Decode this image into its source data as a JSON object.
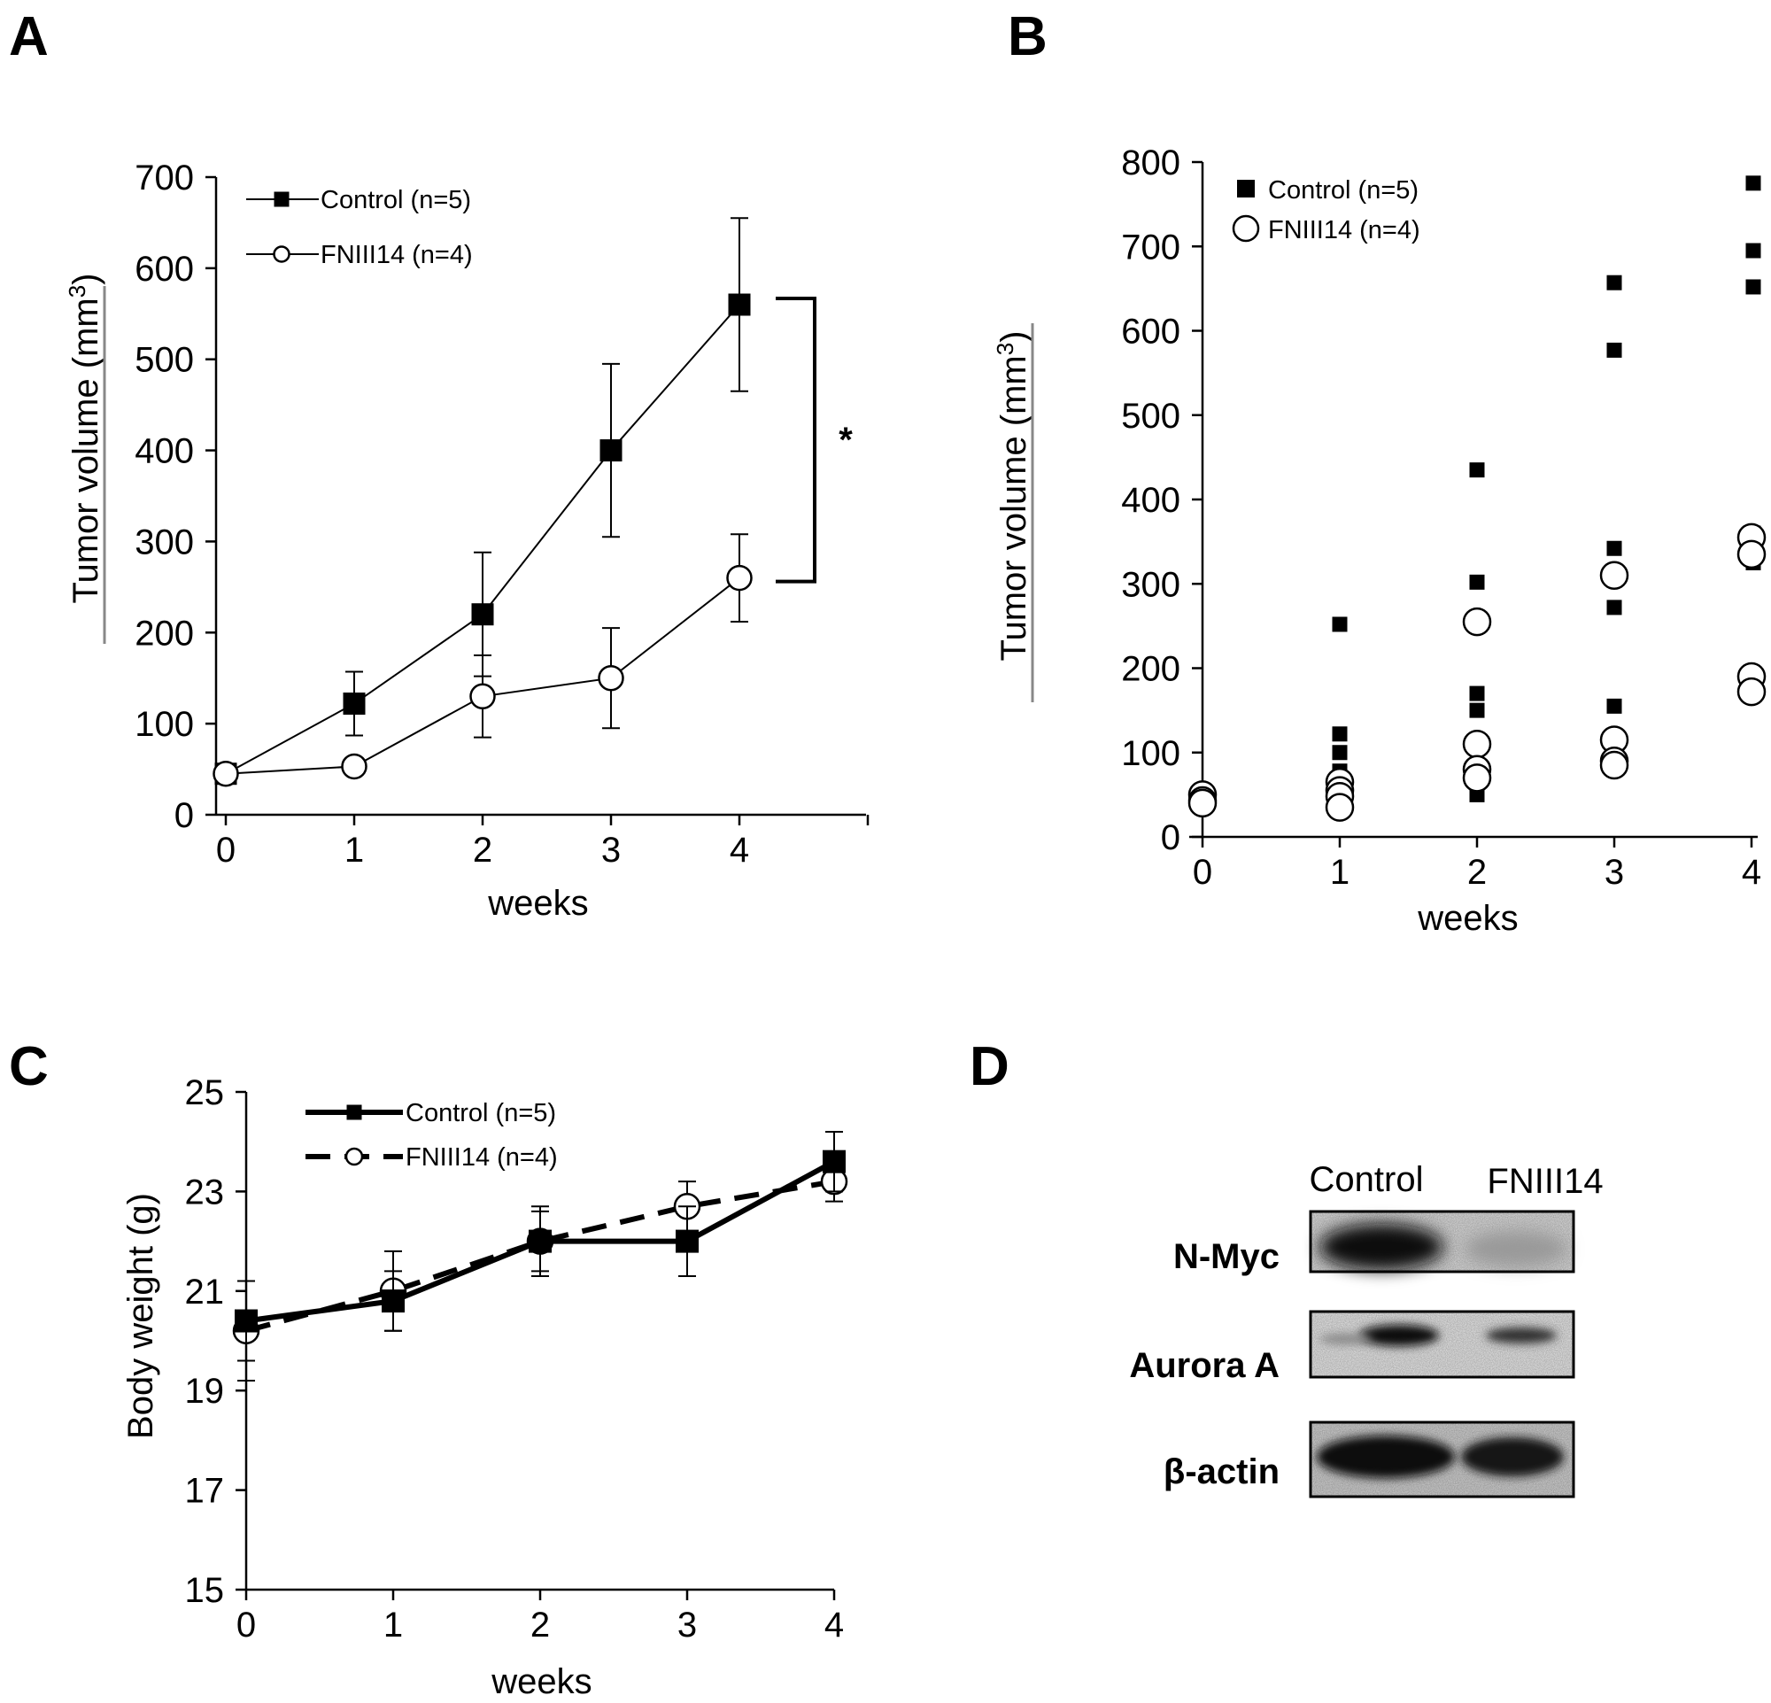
{
  "panels": {
    "A": "A",
    "B": "B",
    "C": "C",
    "D": "D"
  },
  "chart_data": [
    {
      "id": "A",
      "type": "line",
      "title": "",
      "xlabel": "weeks",
      "ylabel_main": "Tumor volume (mm",
      "ylabel_sup": "3",
      "ylabel_close": ")",
      "xlim": [
        0,
        5
      ],
      "ylim": [
        0,
        700
      ],
      "xticks": [
        0,
        1,
        2,
        3,
        4
      ],
      "yticks": [
        0,
        100,
        200,
        300,
        400,
        500,
        600,
        700
      ],
      "legend_position": "top-left",
      "significance": "*",
      "series": [
        {
          "name": "Control (n=5)",
          "marker": "filled-square",
          "x": [
            0,
            1,
            2,
            3,
            4
          ],
          "y": [
            45,
            122,
            220,
            400,
            560
          ],
          "err": [
            5,
            35,
            68,
            95,
            95
          ]
        },
        {
          "name": "FNIII14 (n=4)",
          "marker": "open-circle",
          "x": [
            0,
            1,
            2,
            3,
            4
          ],
          "y": [
            45,
            53,
            130,
            150,
            260
          ],
          "err": [
            5,
            8,
            45,
            55,
            48
          ]
        }
      ]
    },
    {
      "id": "B",
      "type": "scatter",
      "title": "",
      "xlabel": "weeks",
      "ylabel_main": "Tumor volume (mm",
      "ylabel_sup": "3",
      "ylabel_close": ")",
      "xlim": [
        0,
        4
      ],
      "ylim": [
        0,
        800
      ],
      "xticks": [
        0,
        1,
        2,
        3,
        4
      ],
      "yticks": [
        0,
        100,
        200,
        300,
        400,
        500,
        600,
        700,
        800
      ],
      "legend_position": "top-left",
      "series": [
        {
          "name": "Control (n=5)",
          "marker": "filled-square",
          "points": [
            [
              0,
              50
            ],
            [
              0,
              45
            ],
            [
              0,
              42
            ],
            [
              0,
              40
            ],
            [
              0,
              38
            ],
            [
              1,
              252
            ],
            [
              1,
              122
            ],
            [
              1,
              100
            ],
            [
              1,
              78
            ],
            [
              1,
              70
            ],
            [
              2,
              435
            ],
            [
              2,
              302
            ],
            [
              2,
              170
            ],
            [
              2,
              150
            ],
            [
              2,
              50
            ],
            [
              3,
              657
            ],
            [
              3,
              577
            ],
            [
              3,
              342
            ],
            [
              3,
              272
            ],
            [
              3,
              155
            ],
            [
              4,
              775
            ],
            [
              4,
              695
            ],
            [
              4,
              652
            ],
            [
              4,
              360
            ],
            [
              4,
              325
            ]
          ]
        },
        {
          "name": "FNIII14 (n=4)",
          "marker": "open-circle",
          "points": [
            [
              0,
              50
            ],
            [
              0,
              43
            ],
            [
              0,
              40
            ],
            [
              1,
              65
            ],
            [
              1,
              55
            ],
            [
              1,
              48
            ],
            [
              1,
              35
            ],
            [
              2,
              255
            ],
            [
              2,
              110
            ],
            [
              2,
              80
            ],
            [
              2,
              70
            ],
            [
              3,
              310
            ],
            [
              3,
              115
            ],
            [
              3,
              90
            ],
            [
              3,
              85
            ],
            [
              4,
              355
            ],
            [
              4,
              335
            ],
            [
              4,
              190
            ],
            [
              4,
              172
            ]
          ]
        }
      ]
    },
    {
      "id": "C",
      "type": "line",
      "title": "",
      "xlabel": "weeks",
      "ylabel": "Body weight (g)",
      "xlim": [
        0,
        4
      ],
      "ylim": [
        15,
        25
      ],
      "xticks": [
        0,
        1,
        2,
        3,
        4
      ],
      "yticks": [
        15,
        17,
        19,
        21,
        23,
        25
      ],
      "legend_position": "top-left",
      "series": [
        {
          "name": "Control (n=5)",
          "marker": "filled-square",
          "line": "solid",
          "x": [
            0,
            1,
            2,
            3,
            4
          ],
          "y": [
            20.4,
            20.8,
            22.0,
            22.0,
            23.6
          ],
          "err": [
            0.8,
            0.6,
            0.7,
            0.7,
            0.6
          ]
        },
        {
          "name": "FNIII14 (n=4)",
          "marker": "open-circle",
          "line": "dashed",
          "x": [
            0,
            1,
            2,
            3,
            4
          ],
          "y": [
            20.2,
            21.0,
            22.0,
            22.7,
            23.2
          ],
          "err": [
            1.0,
            0.8,
            0.6,
            0.5,
            0.4
          ]
        }
      ]
    }
  ],
  "blot": {
    "columns": [
      "Control",
      "FNIII14"
    ],
    "rows": [
      "N-Myc",
      "Aurora A",
      "β-actin"
    ]
  }
}
